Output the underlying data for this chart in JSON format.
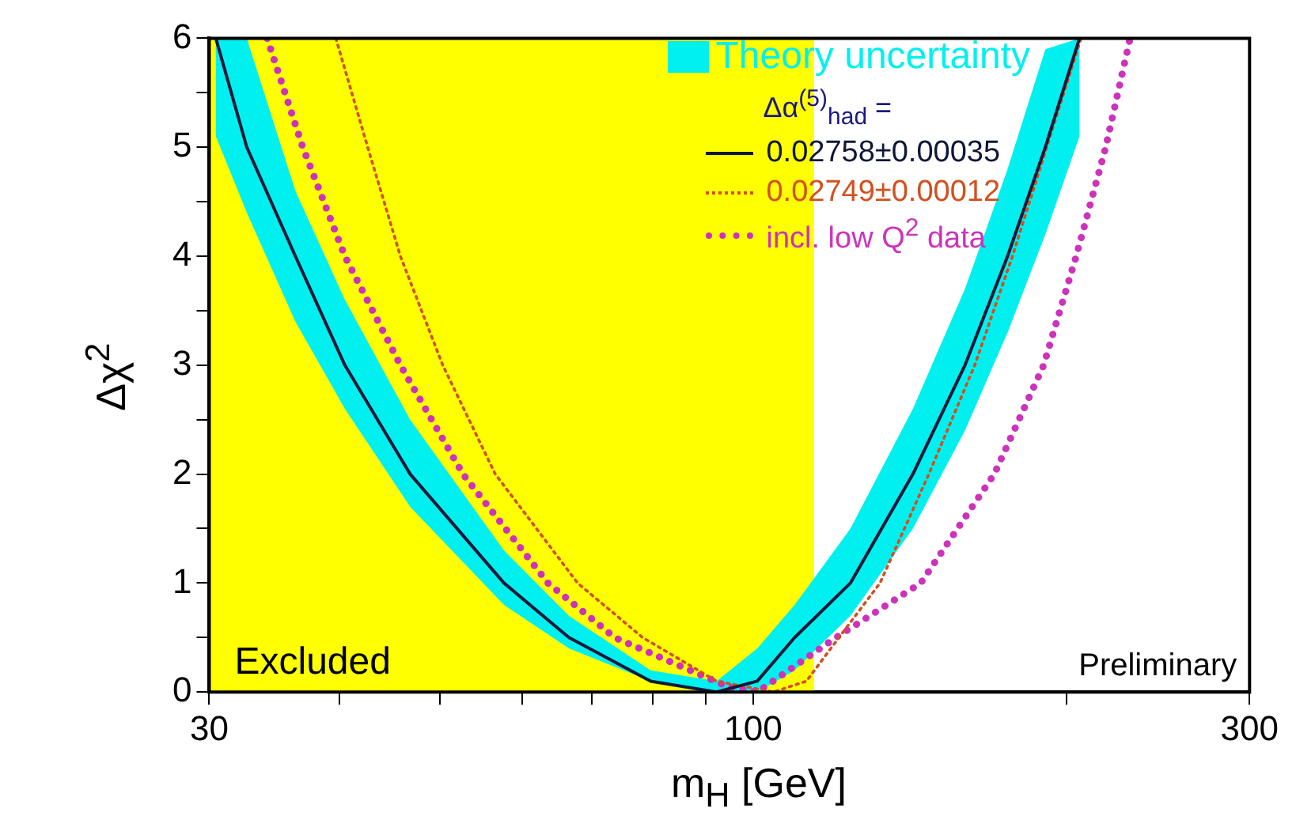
{
  "chart_data": {
    "type": "line",
    "xlabel": "m$_{H}$ [GeV]",
    "ylabel": "Δχ$^{2}$",
    "legend_title": "Δα$^{(5)}$$_{had}$ =",
    "log": "x",
    "grid": false,
    "legend": "top right",
    "marker": "none",
    "xlim": [
      30,
      300
    ],
    "ylim": [
      0,
      6
    ],
    "xticks": [
      30,
      {
        "value": 40,
        "label": null
      },
      {
        "value": 50,
        "label": null
      },
      {
        "value": 60,
        "label": null
      },
      {
        "value": 70,
        "label": null
      },
      {
        "value": 80,
        "label": null
      },
      {
        "value": 90,
        "label": null
      },
      100,
      {
        "value": 200,
        "label": null
      },
      300
    ],
    "yticks": [
      0,
      {
        "value": 0.5,
        "label": null
      },
      1,
      {
        "value": 1.5,
        "label": null
      },
      2,
      {
        "value": 2.5,
        "label": null
      },
      3,
      {
        "value": 3.5,
        "label": null
      },
      4,
      {
        "value": 4.5,
        "label": null
      },
      5,
      {
        "value": 5.5,
        "label": null
      },
      6
    ],
    "bands": [
      {
        "axis": "x",
        "from": 30,
        "to": 114.4,
        "label": "Excluded",
        "color": "#ffff00"
      }
    ],
    "annotations": [
      "Theory uncertainty",
      "Preliminary"
    ],
    "series": [
      {
        "name": "0.02758±0.00035",
        "type": "line",
        "line_style": "solid",
        "color": "#101838",
        "x": [
          30.44,
          32.6,
          36.3,
          40.5,
          46.8,
          57.6,
          66.5,
          79.7,
          92.2,
          100.9,
          109.6,
          124.0,
          142.4,
          159.8,
          175.6,
          190.9,
          205.9
        ],
        "values": [
          6,
          5,
          4,
          3,
          2,
          1,
          0.5,
          0.1,
          0,
          0.1,
          0.5,
          1,
          2,
          3,
          4,
          5,
          6
        ],
        "lower": [
          5.1,
          4.4,
          3.4,
          2.6,
          1.7,
          0.8,
          0.4,
          0.1,
          0,
          0,
          0.2,
          0.7,
          1.5,
          2.4,
          3.3,
          4.2,
          5.1
        ],
        "upper": [
          6,
          6,
          4.6,
          3.6,
          2.5,
          1.3,
          0.7,
          0.2,
          0.1,
          0.4,
          0.8,
          1.5,
          2.6,
          3.7,
          4.8,
          5.9,
          6
        ]
      },
      {
        "name": "0.02749±0.00012",
        "type": "line",
        "line_style": "dotted",
        "color": "#d2501e",
        "x": [
          39.7,
          42.6,
          45.8,
          50.3,
          56.5,
          67.8,
          78.3,
          92.2,
          104.6,
          112.5,
          120.9,
          132.4,
          147.5,
          163.3,
          177.5,
          191.5,
          206.6
        ],
        "values": [
          6,
          5,
          4,
          3,
          2,
          1,
          0.5,
          0.1,
          0,
          0.1,
          0.5,
          1,
          2,
          3,
          4,
          5,
          6
        ]
      },
      {
        "name": "incl. low Q$^{2}$ data",
        "type": "line",
        "line_style": "dotted",
        "color": "#cc33bb",
        "x": [
          34.1,
          36.9,
          40.5,
          45.8,
          52.6,
          63.5,
          73.6,
          94.5,
          100.9,
          120.1,
          144.9,
          170.5,
          190.2,
          204.4,
          218.2,
          230.3
        ],
        "values": [
          6,
          5,
          4,
          3,
          2,
          1,
          0.5,
          0.05,
          0,
          0.5,
          1,
          2,
          3,
          4,
          5,
          6
        ]
      }
    ]
  }
}
